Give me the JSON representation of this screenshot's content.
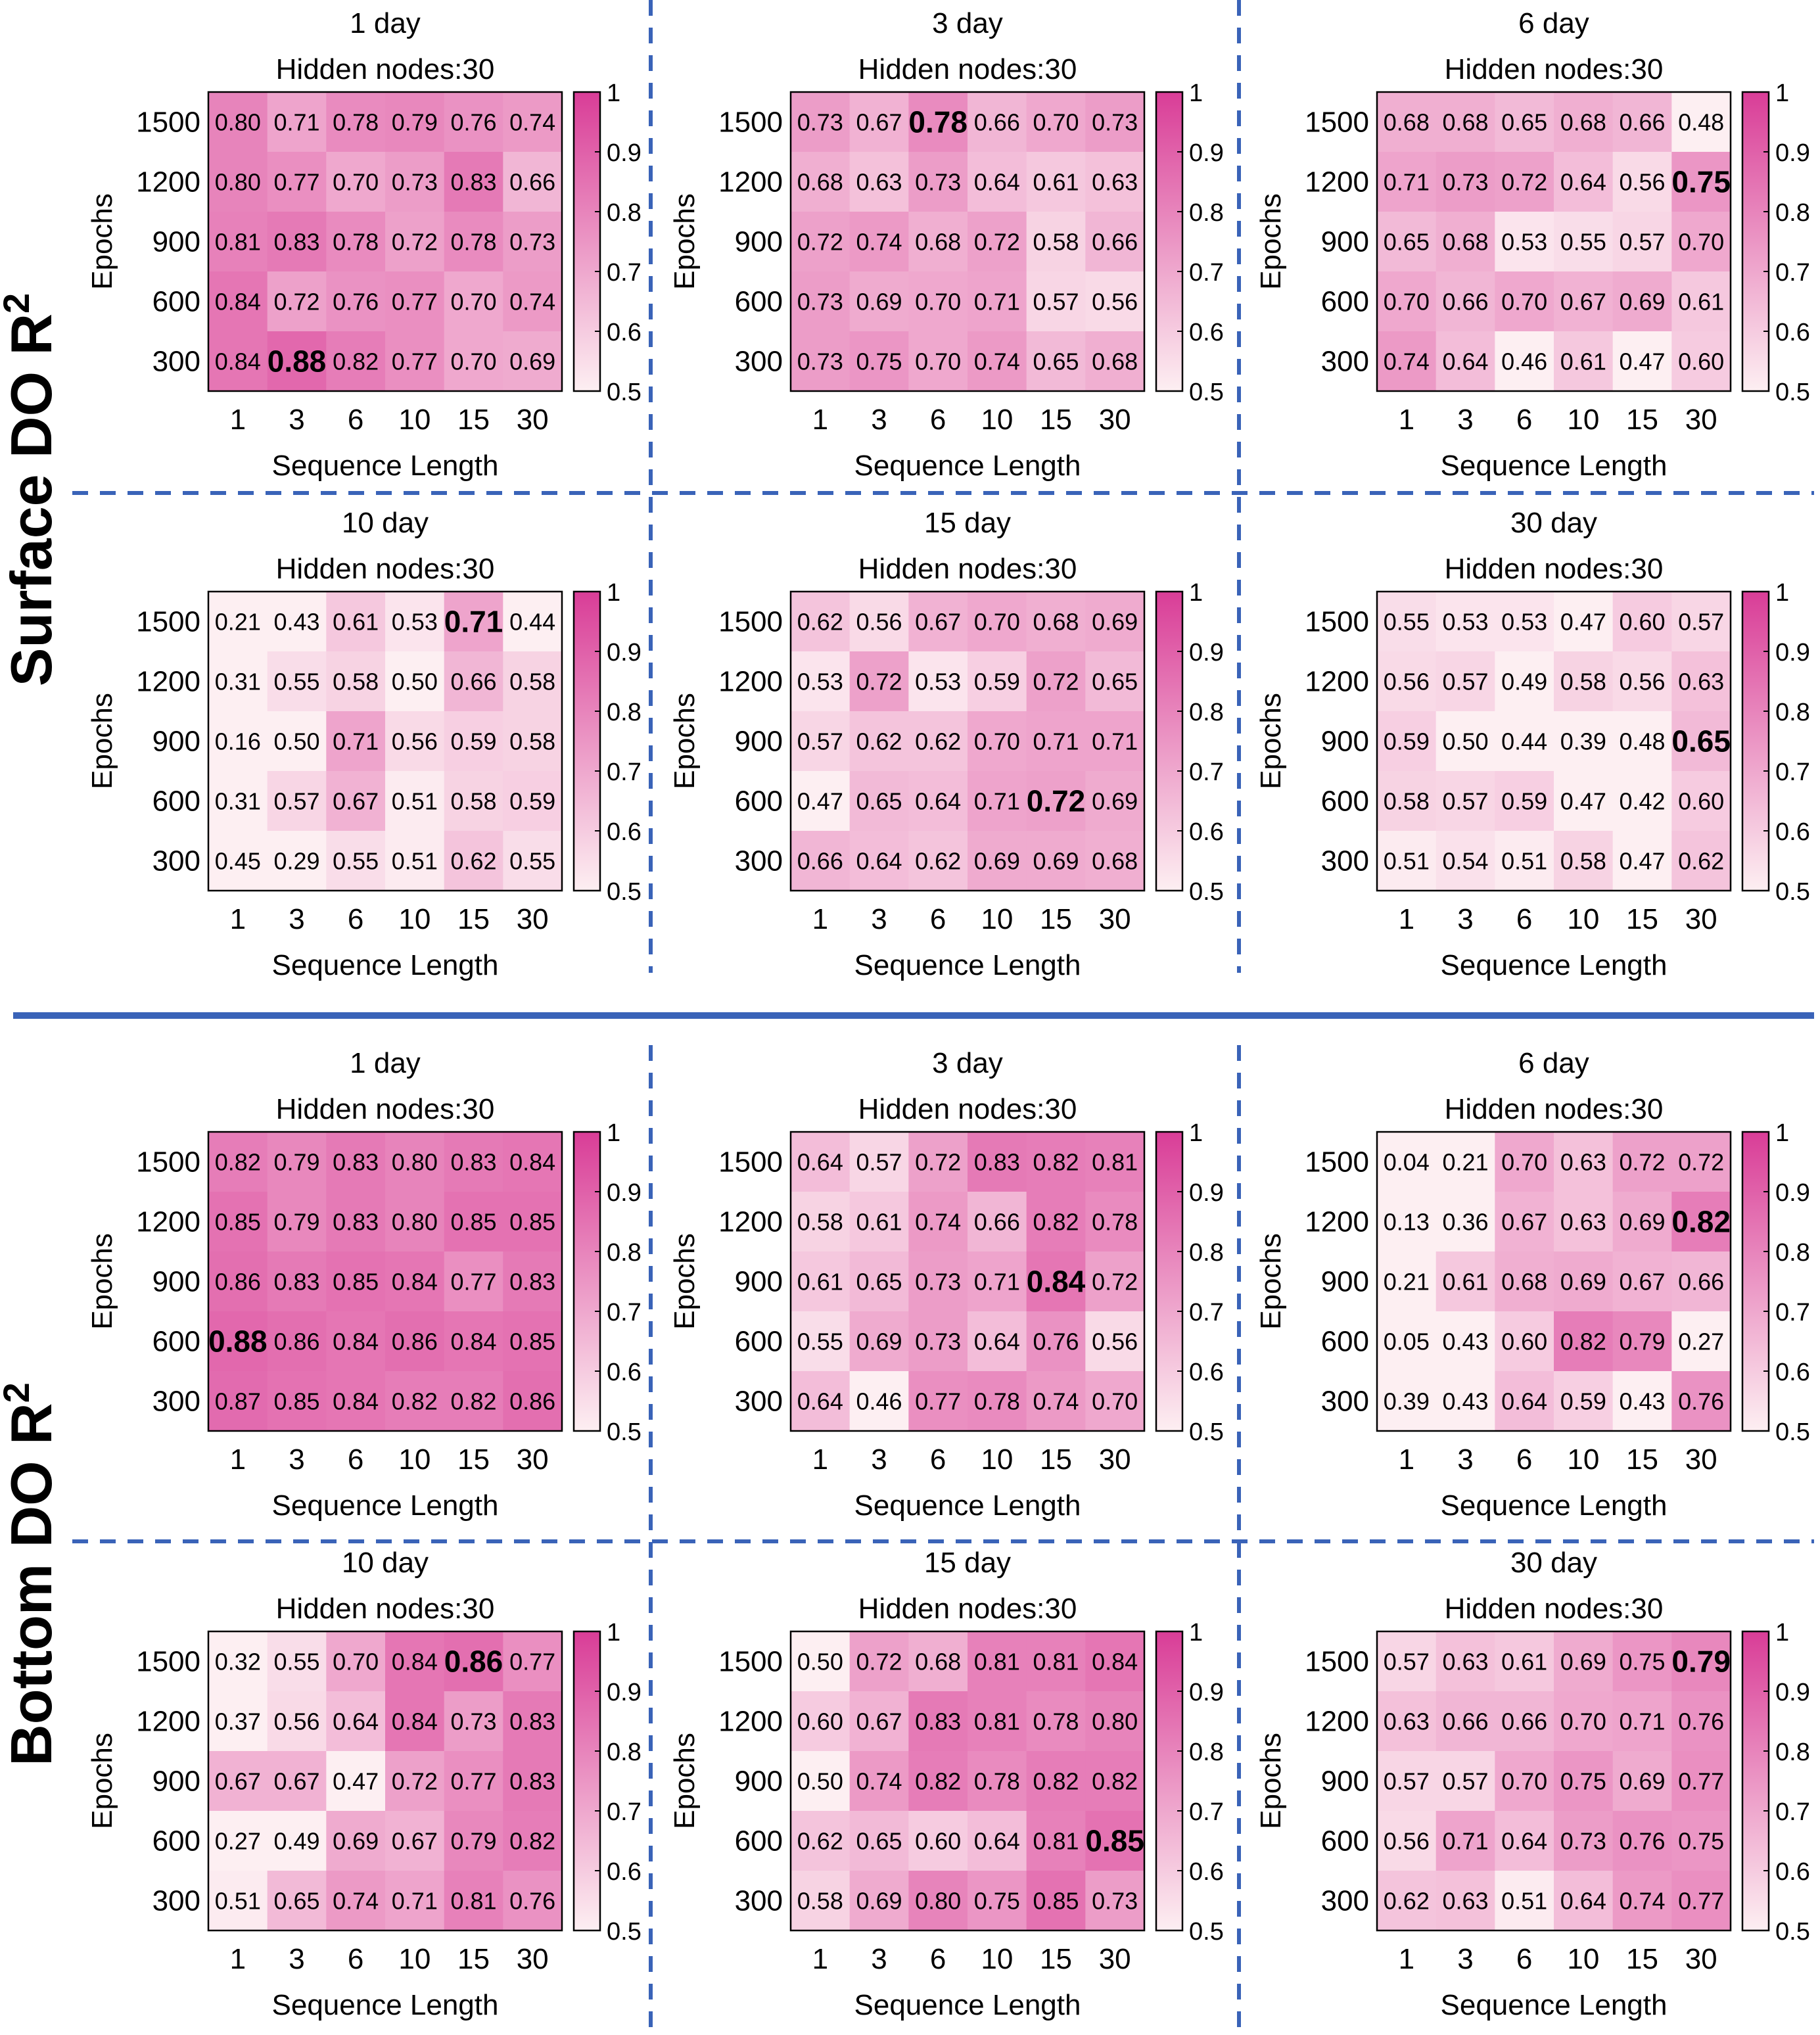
{
  "sections": [
    {
      "label": "Surface DO R",
      "label_sup": "2",
      "charts": [
        {
          "title": "1 day",
          "subtitle": "Hidden nodes:30",
          "values": [
            [
              0.8,
              0.71,
              0.78,
              0.79,
              0.76,
              0.74
            ],
            [
              0.8,
              0.77,
              0.7,
              0.73,
              0.83,
              0.66
            ],
            [
              0.81,
              0.83,
              0.78,
              0.72,
              0.78,
              0.73
            ],
            [
              0.84,
              0.72,
              0.76,
              0.77,
              0.7,
              0.74
            ],
            [
              0.84,
              0.88,
              0.82,
              0.77,
              0.7,
              0.69
            ]
          ],
          "best": [
            4,
            1
          ]
        },
        {
          "title": "3 day",
          "subtitle": "Hidden nodes:30",
          "values": [
            [
              0.73,
              0.67,
              0.78,
              0.66,
              0.7,
              0.73
            ],
            [
              0.68,
              0.63,
              0.73,
              0.64,
              0.61,
              0.63
            ],
            [
              0.72,
              0.74,
              0.68,
              0.72,
              0.58,
              0.66
            ],
            [
              0.73,
              0.69,
              0.7,
              0.71,
              0.57,
              0.56
            ],
            [
              0.73,
              0.75,
              0.7,
              0.74,
              0.65,
              0.68
            ]
          ],
          "best": [
            0,
            2
          ]
        },
        {
          "title": "6 day",
          "subtitle": "Hidden nodes:30",
          "values": [
            [
              0.68,
              0.68,
              0.65,
              0.68,
              0.66,
              0.48
            ],
            [
              0.71,
              0.73,
              0.72,
              0.64,
              0.56,
              0.75
            ],
            [
              0.65,
              0.68,
              0.53,
              0.55,
              0.57,
              0.7
            ],
            [
              0.7,
              0.66,
              0.7,
              0.67,
              0.69,
              0.61
            ],
            [
              0.74,
              0.64,
              0.46,
              0.61,
              0.47,
              0.6
            ]
          ],
          "best": [
            1,
            5
          ]
        },
        {
          "title": "10 day",
          "subtitle": "Hidden nodes:30",
          "values": [
            [
              0.21,
              0.43,
              0.61,
              0.53,
              0.71,
              0.44
            ],
            [
              0.31,
              0.55,
              0.58,
              0.5,
              0.66,
              0.58
            ],
            [
              0.16,
              0.5,
              0.71,
              0.56,
              0.59,
              0.58
            ],
            [
              0.31,
              0.57,
              0.67,
              0.51,
              0.58,
              0.59
            ],
            [
              0.45,
              0.29,
              0.55,
              0.51,
              0.62,
              0.55
            ]
          ],
          "best": [
            0,
            4
          ]
        },
        {
          "title": "15 day",
          "subtitle": "Hidden nodes:30",
          "values": [
            [
              0.62,
              0.56,
              0.67,
              0.7,
              0.68,
              0.69
            ],
            [
              0.53,
              0.72,
              0.53,
              0.59,
              0.72,
              0.65
            ],
            [
              0.57,
              0.62,
              0.62,
              0.7,
              0.71,
              0.71
            ],
            [
              0.47,
              0.65,
              0.64,
              0.71,
              0.72,
              0.69
            ],
            [
              0.66,
              0.64,
              0.62,
              0.69,
              0.69,
              0.68
            ]
          ],
          "best": [
            3,
            4
          ]
        },
        {
          "title": "30 day",
          "subtitle": "Hidden nodes:30",
          "values": [
            [
              0.55,
              0.53,
              0.53,
              0.47,
              0.6,
              0.57
            ],
            [
              0.56,
              0.57,
              0.49,
              0.58,
              0.56,
              0.63
            ],
            [
              0.59,
              0.5,
              0.44,
              0.39,
              0.48,
              0.65
            ],
            [
              0.58,
              0.57,
              0.59,
              0.47,
              0.42,
              0.6
            ],
            [
              0.51,
              0.54,
              0.51,
              0.58,
              0.47,
              0.62
            ]
          ],
          "best": [
            2,
            5
          ]
        }
      ]
    },
    {
      "label": "Bottom DO R",
      "label_sup": "2",
      "charts": [
        {
          "title": "1 day",
          "subtitle": "Hidden nodes:30",
          "values": [
            [
              0.82,
              0.79,
              0.83,
              0.8,
              0.83,
              0.84
            ],
            [
              0.85,
              0.79,
              0.83,
              0.8,
              0.85,
              0.85
            ],
            [
              0.86,
              0.83,
              0.85,
              0.84,
              0.77,
              0.83
            ],
            [
              0.88,
              0.86,
              0.84,
              0.86,
              0.84,
              0.85
            ],
            [
              0.87,
              0.85,
              0.84,
              0.82,
              0.82,
              0.86
            ]
          ],
          "best": [
            3,
            0
          ]
        },
        {
          "title": "3 day",
          "subtitle": "Hidden nodes:30",
          "values": [
            [
              0.64,
              0.57,
              0.72,
              0.83,
              0.82,
              0.81
            ],
            [
              0.58,
              0.61,
              0.74,
              0.66,
              0.82,
              0.78
            ],
            [
              0.61,
              0.65,
              0.73,
              0.71,
              0.84,
              0.72
            ],
            [
              0.55,
              0.69,
              0.73,
              0.64,
              0.76,
              0.56
            ],
            [
              0.64,
              0.46,
              0.77,
              0.78,
              0.74,
              0.7
            ]
          ],
          "best": [
            2,
            4
          ]
        },
        {
          "title": "6 day",
          "subtitle": "Hidden nodes:30",
          "values": [
            [
              0.04,
              0.21,
              0.7,
              0.63,
              0.72,
              0.72
            ],
            [
              0.13,
              0.36,
              0.67,
              0.63,
              0.69,
              0.82
            ],
            [
              0.21,
              0.61,
              0.68,
              0.69,
              0.67,
              0.66
            ],
            [
              0.05,
              0.43,
              0.6,
              0.82,
              0.79,
              0.27
            ],
            [
              0.39,
              0.43,
              0.64,
              0.59,
              0.43,
              0.76
            ]
          ],
          "best": [
            1,
            5
          ]
        },
        {
          "title": "10 day",
          "subtitle": "Hidden nodes:30",
          "values": [
            [
              0.32,
              0.55,
              0.7,
              0.84,
              0.86,
              0.77
            ],
            [
              0.37,
              0.56,
              0.64,
              0.84,
              0.73,
              0.83
            ],
            [
              0.67,
              0.67,
              0.47,
              0.72,
              0.77,
              0.83
            ],
            [
              0.27,
              0.49,
              0.69,
              0.67,
              0.79,
              0.82
            ],
            [
              0.51,
              0.65,
              0.74,
              0.71,
              0.81,
              0.76
            ]
          ],
          "best": [
            0,
            4
          ]
        },
        {
          "title": "15 day",
          "subtitle": "Hidden nodes:30",
          "values": [
            [
              0.5,
              0.72,
              0.68,
              0.81,
              0.81,
              0.84
            ],
            [
              0.6,
              0.67,
              0.83,
              0.81,
              0.78,
              0.8
            ],
            [
              0.5,
              0.74,
              0.82,
              0.78,
              0.82,
              0.82
            ],
            [
              0.62,
              0.65,
              0.6,
              0.64,
              0.81,
              0.85
            ],
            [
              0.58,
              0.69,
              0.8,
              0.75,
              0.85,
              0.73
            ]
          ],
          "best": [
            3,
            5
          ]
        },
        {
          "title": "30 day",
          "subtitle": "Hidden nodes:30",
          "values": [
            [
              0.57,
              0.63,
              0.61,
              0.69,
              0.75,
              0.79
            ],
            [
              0.63,
              0.66,
              0.66,
              0.7,
              0.71,
              0.76
            ],
            [
              0.57,
              0.57,
              0.7,
              0.75,
              0.69,
              0.77
            ],
            [
              0.56,
              0.71,
              0.64,
              0.73,
              0.76,
              0.75
            ],
            [
              0.62,
              0.63,
              0.51,
              0.64,
              0.74,
              0.77
            ]
          ],
          "best": [
            0,
            5
          ]
        }
      ]
    }
  ],
  "chart_data": {
    "type": "heatmap",
    "x_ticks": [
      "1",
      "3",
      "6",
      "10",
      "15",
      "30"
    ],
    "y_ticks": [
      "1500",
      "1200",
      "900",
      "600",
      "300"
    ],
    "xlabel": "Sequence Length",
    "ylabel": "Epochs",
    "colorbar_ticks": [
      "1",
      "0.9",
      "0.8",
      "0.7",
      "0.6",
      "0.5"
    ],
    "clim": [
      0.5,
      1.0
    ],
    "colormap": {
      "low": "#fdeff2",
      "high": "#d93d97"
    },
    "grid": false
  },
  "colors": {
    "divider": "#3a63b8",
    "frame": "#000000",
    "text": "#000000"
  }
}
